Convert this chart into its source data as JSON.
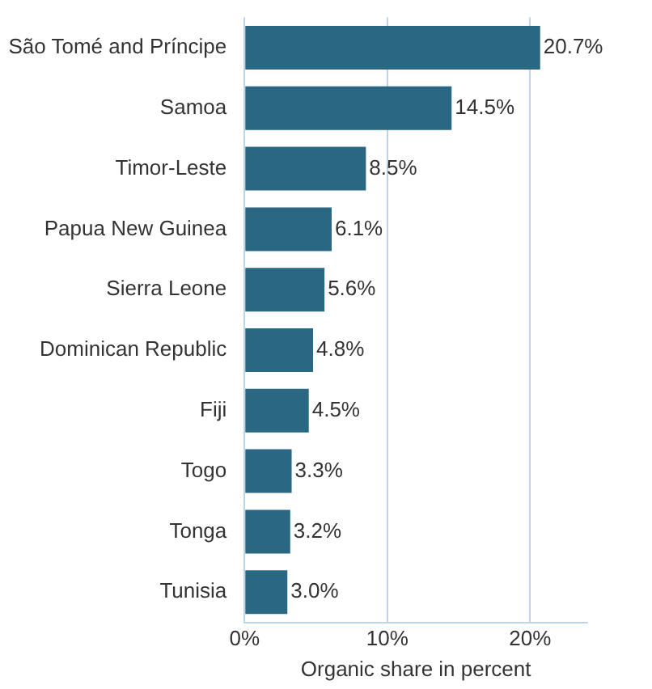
{
  "chart_data": {
    "type": "bar",
    "orientation": "horizontal",
    "xlabel": "Organic share in percent",
    "categories": [
      "São Tomé and Príncipe",
      "Samoa",
      "Timor-Leste",
      "Papua New Guinea",
      "Sierra Leone",
      "Dominican Republic",
      "Fiji",
      "Togo",
      "Tonga",
      "Tunisia"
    ],
    "values": [
      20.7,
      14.5,
      8.5,
      6.1,
      5.6,
      4.8,
      4.5,
      3.3,
      3.2,
      3.0
    ],
    "value_labels": [
      "20.7%",
      "14.5%",
      "8.5%",
      "6.1%",
      "5.6%",
      "4.8%",
      "4.5%",
      "3.3%",
      "3.2%",
      "3.0%"
    ],
    "color": "#2a6783",
    "xlim": [
      0,
      24
    ],
    "xticks": [
      {
        "value": 0,
        "label": "0%"
      },
      {
        "value": 10,
        "label": "10%"
      },
      {
        "value": 20,
        "label": "20%"
      }
    ],
    "grid": "x"
  }
}
